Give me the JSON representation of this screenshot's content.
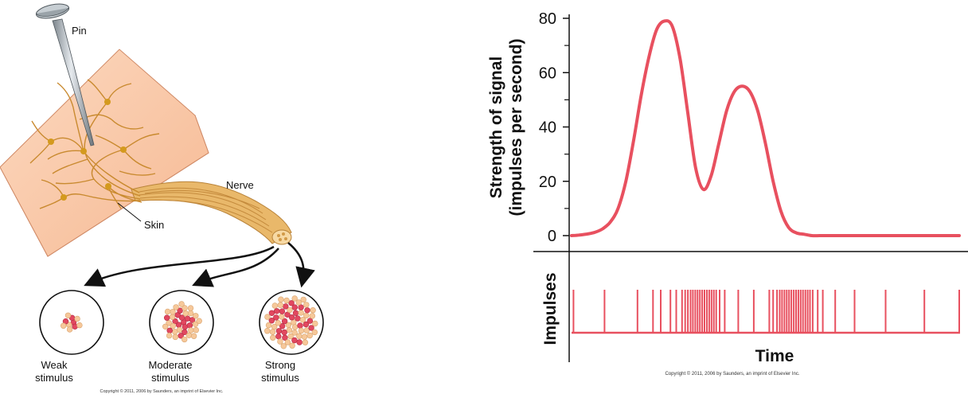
{
  "illustration": {
    "pin_label": "Pin",
    "nerve_label": "Nerve",
    "skin_label": "Skin",
    "bundles": [
      {
        "line1": "Weak",
        "line2": "stimulus",
        "red_fibers": 4,
        "tan_fibers": 6
      },
      {
        "line1": "Moderate",
        "line2": "stimulus",
        "red_fibers": 14,
        "tan_fibers": 24
      },
      {
        "line1": "Strong",
        "line2": "stimulus",
        "red_fibers": 26,
        "tan_fibers": 40
      }
    ],
    "copyright": "Copyright © 2011, 2006 by Saunders, an imprint of Elsevier Inc."
  },
  "chart_data": {
    "type": "line",
    "title": "",
    "ylabel_line1": "Strength of signal",
    "ylabel_line2": "(impulses per second)",
    "xlabel": "Time",
    "ylim": [
      0,
      80
    ],
    "yticks": [
      0,
      20,
      40,
      60,
      80
    ],
    "x": [
      0,
      2,
      4,
      6,
      8,
      10,
      12,
      14,
      16,
      18,
      20,
      22,
      24,
      26,
      28,
      30,
      32,
      34,
      36,
      38,
      40,
      42,
      44,
      46,
      48,
      50,
      52,
      54,
      56,
      58,
      60,
      62,
      64,
      66,
      68,
      70,
      72,
      74,
      76,
      78,
      80,
      82,
      84,
      86,
      88,
      90,
      92,
      94,
      96,
      98,
      100
    ],
    "series": [
      {
        "name": "Strength of signal",
        "color": "#e8505f",
        "values": [
          0,
          0.2,
          0.6,
          1.2,
          2.5,
          5,
          10,
          20,
          35,
          52,
          66,
          76,
          79,
          77,
          65,
          45,
          25,
          17,
          22,
          34,
          46,
          53,
          55,
          53,
          46,
          34,
          20,
          9,
          3,
          1,
          0.5,
          0,
          0,
          0,
          0,
          0,
          0,
          0,
          0,
          0,
          0,
          0,
          0,
          0,
          0,
          0,
          0,
          0,
          0,
          0,
          0
        ]
      }
    ],
    "impulses_label": "Impulses",
    "impulse_times": [
      0.5,
      8.5,
      17,
      21,
      23,
      25.5,
      27,
      28.5,
      29.3,
      30,
      30.7,
      31.3,
      31.9,
      32.5,
      33.1,
      33.7,
      34.3,
      34.9,
      35.5,
      36.1,
      36.7,
      37.3,
      38.2,
      39.5,
      43,
      47,
      51,
      52,
      53,
      53.7,
      54.3,
      54.9,
      55.5,
      56.1,
      56.7,
      57.3,
      57.9,
      58.5,
      59.1,
      59.7,
      60.3,
      60.9,
      61.5,
      62.2,
      63.5,
      64.8,
      68,
      73,
      81,
      91,
      100
    ],
    "copyright": "Copyright © 2011, 2006 by Saunders, an imprint of Elsevier Inc."
  }
}
